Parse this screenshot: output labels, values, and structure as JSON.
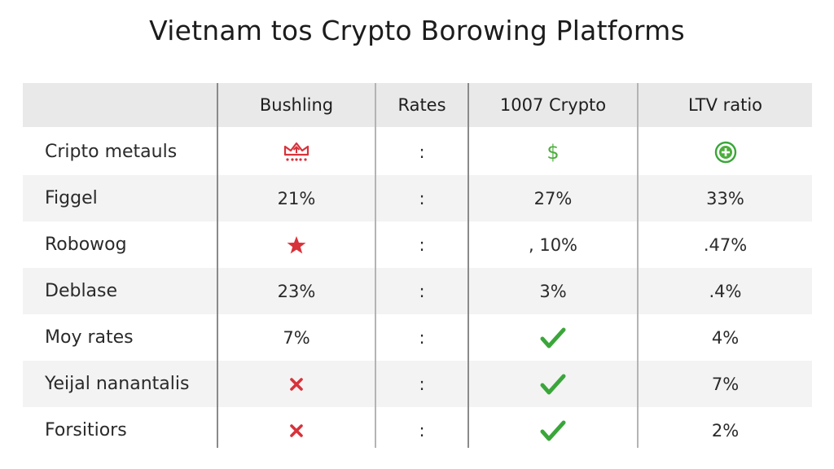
{
  "title": "Vietnam tos Crypto Borowing Platforms",
  "colors": {
    "check": "#3aa63a",
    "cross": "#d8323a",
    "dollar": "#4cae3c",
    "header_bg": "#e9e9e9",
    "shade_bg": "#f3f3f3"
  },
  "table": {
    "headers": [
      "",
      "Bushling",
      "Rates",
      "1007 Crypto",
      "LTV ratio"
    ],
    "rows": [
      {
        "label": "Cripto metauls",
        "c1": "",
        "c1_icon": "crown-icon",
        "c2": ":",
        "c3": "$",
        "c3_icon": "dollar-icon",
        "c4": "",
        "c4_icon": "plus-circle-icon"
      },
      {
        "label": "Figgel",
        "c1": "21%",
        "c2": ":",
        "c3": "27%",
        "c4": "33%"
      },
      {
        "label": "Robowog",
        "c1": "",
        "c1_icon": "star-icon",
        "c2": ":",
        "c3": ", 10%",
        "c4": ".47%"
      },
      {
        "label": "Deblase",
        "c1": "23%",
        "c2": ":",
        "c3": "3%",
        "c4": ".4%"
      },
      {
        "label": "Moy rates",
        "c1": "7%",
        "c2": ":",
        "c3": "",
        "c3_icon": "check-icon",
        "c4": "4%"
      },
      {
        "label": "Yeijal nanantalis",
        "c1": "",
        "c1_icon": "cross-icon",
        "c2": ":",
        "c3": "",
        "c3_icon": "check-icon",
        "c4": "7%"
      },
      {
        "label": "Forsitiors",
        "c1": "",
        "c1_icon": "cross-icon",
        "c2": ":",
        "c3": "",
        "c3_icon": "check-icon",
        "c4": "2%"
      }
    ]
  }
}
